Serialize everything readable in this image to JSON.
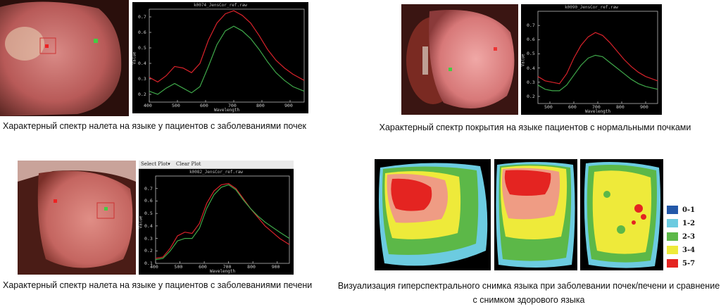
{
  "captions": {
    "kidney_coating": "Характерный спектр налета на языке у пациентов с заболеваниями почек",
    "normal_kidney_coating": "Характерный спектр покрытия на языке пациентов с нормальными почками",
    "liver_coating": "Характерный спектр налета на языке у пациентов с заболеваниями печени",
    "visualization": "Визуализация гиперспектрального снимка языка при заболевании почек/печени и сравнение с снимком здорового языка"
  },
  "plot_toolbar": {
    "select_plot": "Select Plot▾",
    "clear_plot": "Clear Plot"
  },
  "colors": {
    "red_curve": "#d8222a",
    "green_curve": "#3fa84a",
    "plot_bg": "#000000"
  },
  "chart_data": [
    {
      "type": "line",
      "title": "k0074_JensCor_ref.raw",
      "xlabel": "Wavelength",
      "ylabel": "Value",
      "xlim": [
        400,
        950
      ],
      "ylim": [
        0.15,
        0.75
      ],
      "xticks": [
        "400",
        "500",
        "600",
        "700",
        "800",
        "900"
      ],
      "yticks": [
        "0.2",
        "0.3",
        "0.4",
        "0.5",
        "0.6",
        "0.7"
      ],
      "x": [
        400,
        430,
        460,
        490,
        520,
        550,
        580,
        610,
        640,
        670,
        700,
        730,
        760,
        790,
        820,
        850,
        880,
        910,
        950
      ],
      "series": [
        {
          "color": "red",
          "values": [
            0.31,
            0.28,
            0.32,
            0.38,
            0.37,
            0.34,
            0.4,
            0.55,
            0.66,
            0.72,
            0.74,
            0.71,
            0.66,
            0.58,
            0.49,
            0.42,
            0.37,
            0.33,
            0.29
          ]
        },
        {
          "color": "green",
          "values": [
            0.22,
            0.2,
            0.24,
            0.27,
            0.24,
            0.21,
            0.25,
            0.38,
            0.52,
            0.61,
            0.64,
            0.61,
            0.56,
            0.49,
            0.41,
            0.34,
            0.29,
            0.25,
            0.22
          ]
        }
      ]
    },
    {
      "type": "line",
      "title": "k0090_JensCor_ref.raw",
      "xlabel": "Wavelength",
      "ylabel": "Value",
      "xlim": [
        450,
        950
      ],
      "ylim": [
        0.15,
        0.8
      ],
      "xticks": [
        "500",
        "600",
        "700",
        "800",
        "900"
      ],
      "yticks": [
        "0.2",
        "0.3",
        "0.4",
        "0.5",
        "0.6",
        "0.7"
      ],
      "x": [
        450,
        480,
        510,
        540,
        570,
        600,
        630,
        660,
        690,
        720,
        750,
        780,
        810,
        840,
        870,
        900,
        950
      ],
      "series": [
        {
          "color": "red",
          "values": [
            0.34,
            0.31,
            0.3,
            0.29,
            0.36,
            0.47,
            0.56,
            0.62,
            0.65,
            0.63,
            0.58,
            0.52,
            0.46,
            0.41,
            0.37,
            0.34,
            0.31
          ]
        },
        {
          "color": "green",
          "values": [
            0.28,
            0.25,
            0.24,
            0.24,
            0.28,
            0.35,
            0.42,
            0.47,
            0.49,
            0.48,
            0.44,
            0.4,
            0.36,
            0.32,
            0.29,
            0.27,
            0.25
          ]
        }
      ]
    },
    {
      "type": "line",
      "title": "k0082_JensCor_ref.raw",
      "xlabel": "Wavelength",
      "ylabel": "Value",
      "xlim": [
        400,
        950
      ],
      "ylim": [
        0.1,
        0.8
      ],
      "xticks": [
        "400",
        "500",
        "600",
        "700",
        "800",
        "900"
      ],
      "yticks": [
        "0.1",
        "0.2",
        "0.3",
        "0.4",
        "0.5",
        "0.6",
        "0.7"
      ],
      "x": [
        400,
        430,
        460,
        490,
        520,
        550,
        580,
        610,
        640,
        670,
        700,
        730,
        760,
        790,
        820,
        850,
        880,
        910,
        950
      ],
      "series": [
        {
          "color": "red",
          "values": [
            0.14,
            0.15,
            0.22,
            0.32,
            0.35,
            0.34,
            0.42,
            0.58,
            0.68,
            0.73,
            0.74,
            0.7,
            0.62,
            0.54,
            0.47,
            0.4,
            0.35,
            0.3,
            0.25
          ]
        },
        {
          "color": "green",
          "values": [
            0.13,
            0.14,
            0.2,
            0.28,
            0.3,
            0.3,
            0.38,
            0.54,
            0.65,
            0.71,
            0.73,
            0.69,
            0.61,
            0.54,
            0.48,
            0.43,
            0.39,
            0.35,
            0.3
          ]
        }
      ]
    }
  ],
  "legend": [
    {
      "label": "0-1",
      "color": "#2358a8"
    },
    {
      "label": "1-2",
      "color": "#6ccbe0"
    },
    {
      "label": "2-3",
      "color": "#5cb848"
    },
    {
      "label": "3-4",
      "color": "#eeea3a"
    },
    {
      "label": "5-7",
      "color": "#e42421"
    }
  ]
}
